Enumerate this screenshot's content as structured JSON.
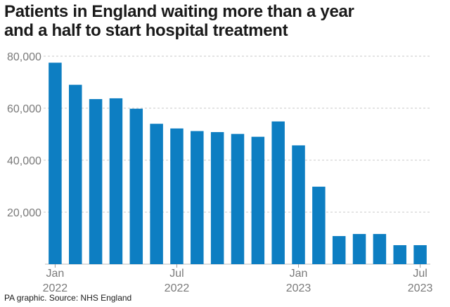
{
  "title_lines": [
    "Patients in England waiting more than a year",
    "and a half to start hospital treatment"
  ],
  "source": "PA graphic. Source: NHS England",
  "colors": {
    "bar": "#0d7ec2",
    "grid": "#c9c9c9",
    "axis_text": "#7a7a7a"
  },
  "chart_data": {
    "type": "bar",
    "title": "Patients in England waiting more than a year and a half to start hospital treatment",
    "categories": [
      "Jan 2022",
      "Feb 2022",
      "Mar 2022",
      "Apr 2022",
      "May 2022",
      "Jun 2022",
      "Jul 2022",
      "Aug 2022",
      "Sep 2022",
      "Oct 2022",
      "Nov 2022",
      "Dec 2022",
      "Jan 2023",
      "Feb 2023",
      "Mar 2023",
      "Apr 2023",
      "May 2023",
      "Jun 2023",
      "Jul 2023"
    ],
    "values": [
      77500,
      69000,
      63500,
      63800,
      59800,
      54000,
      52200,
      51200,
      50800,
      50100,
      49000,
      54900,
      45700,
      29800,
      10800,
      11600,
      11600,
      7300,
      7300
    ],
    "ylim": [
      0,
      80000
    ],
    "yticks": [
      {
        "value": 20000,
        "label": "20,000"
      },
      {
        "value": 40000,
        "label": "40,000"
      },
      {
        "value": 60000,
        "label": "60,000"
      },
      {
        "value": 80000,
        "label": "80,000"
      }
    ],
    "xticks": [
      {
        "index": 0,
        "lines": [
          "Jan",
          "2022"
        ]
      },
      {
        "index": 6,
        "lines": [
          "Jul",
          "2022"
        ]
      },
      {
        "index": 12,
        "lines": [
          "Jan",
          "2023"
        ]
      },
      {
        "index": 18,
        "lines": [
          "Jul",
          "2023"
        ]
      }
    ],
    "grid": true,
    "xlabel": "",
    "ylabel": ""
  }
}
